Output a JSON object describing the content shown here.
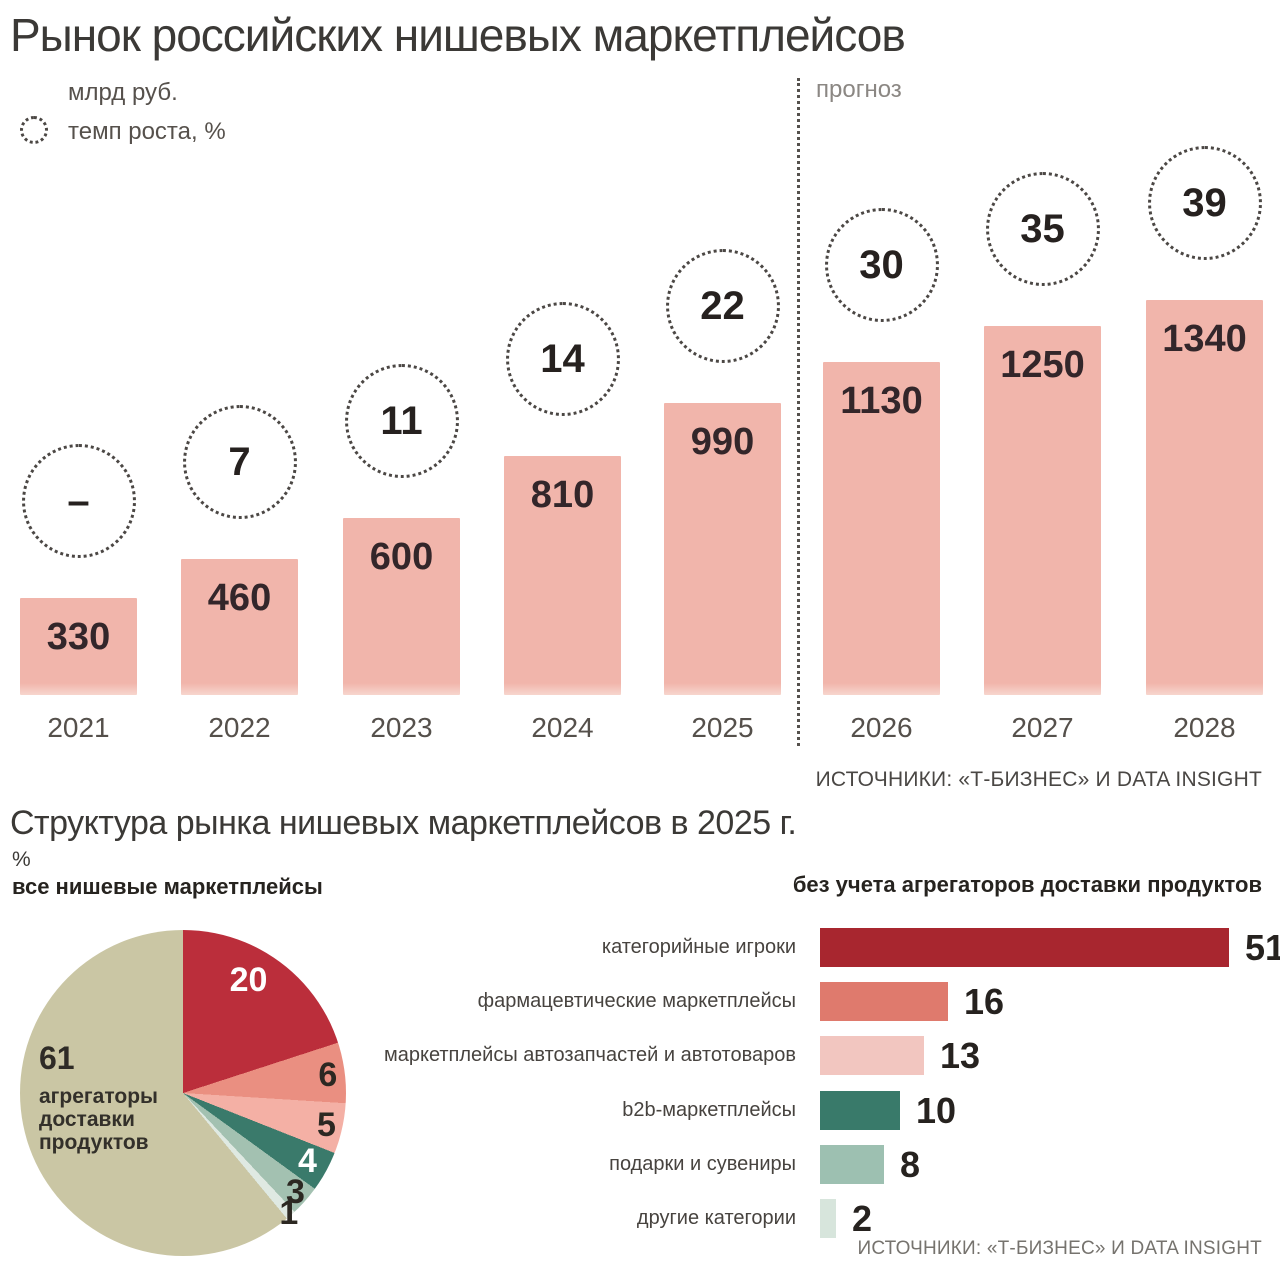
{
  "header": {
    "title": "Рынок российских нишевых маркетплейсов"
  },
  "legend": {
    "bars_label": "млрд руб.",
    "growth_label": "темп роста, %"
  },
  "forecast_label": "прогноз",
  "sources": {
    "top": "ИСТОЧНИКИ: «Т-БИЗНЕС» И DATA INSIGHT",
    "bottom": "ИСТОЧНИКИ: «Т-БИЗНЕС» И DATA INSIGHT"
  },
  "section2": {
    "title": "Структура рынка нишевых маркетплейсов в 2025 г.",
    "unit_label": "%",
    "pie_title": "все нишевые маркетплейсы",
    "hbar_title": "без учета агрегаторов доставки продуктов",
    "aggregator_label": {
      "value": "61",
      "text": "агрегаторы доставки продуктов"
    }
  },
  "colors": {
    "bar_pink": "#f1b5ab",
    "bar_pink_fade": "#f7d6ce",
    "dotted_line": "#55514d"
  },
  "chart_data": [
    {
      "type": "bar",
      "title": "Рынок российских нишевых маркетплейсов",
      "unit": "млрд руб.",
      "categories": [
        "2021",
        "2022",
        "2023",
        "2024",
        "2025",
        "2026",
        "2027",
        "2028"
      ],
      "values": [
        330,
        460,
        600,
        810,
        990,
        1130,
        1250,
        1340
      ],
      "growth_rate_pct": [
        "–",
        "7",
        "11",
        "14",
        "22",
        "30",
        "35",
        "39"
      ],
      "forecast_years": [
        "2026",
        "2027",
        "2028"
      ],
      "bar_color": "#f1b5ab",
      "ylim": [
        0,
        1400
      ],
      "grid": false,
      "legend_position": "top-left"
    },
    {
      "type": "pie",
      "title": "все нишевые маркетплейсы",
      "unit": "%",
      "slices": [
        {
          "value": 20,
          "color": "#bb2e3b",
          "label_color": "#ffffff"
        },
        {
          "value": 6,
          "color": "#ea8f81",
          "label_color": "#2c2822"
        },
        {
          "value": 5,
          "color": "#f4b0a5",
          "label_color": "#2c2822"
        },
        {
          "value": 4,
          "color": "#3a7a6b",
          "label_color": "#ffffff"
        },
        {
          "value": 3,
          "color": "#a3c1b1",
          "label_color": "#2c2822"
        },
        {
          "value": 1,
          "color": "#dfe9e2",
          "label_color": "#2c2822"
        },
        {
          "value": 61,
          "color": "#cac6a4",
          "label": "агрегаторы доставки продуктов",
          "label_color": "#2e2b26"
        }
      ]
    },
    {
      "type": "bar",
      "orientation": "horizontal",
      "title": "без учета агрегаторов доставки продуктов",
      "unit": "%",
      "categories": [
        "категорийные игроки",
        "фармацевтические маркетплейсы",
        "маркетплейсы автозапчастей и автотоваров",
        "b2b-маркетплейсы",
        "подарки и сувениры",
        "другие категории"
      ],
      "values": [
        51,
        16,
        13,
        10,
        8,
        2
      ],
      "colors": [
        "#a8262f",
        "#df7a6d",
        "#f2c6c0",
        "#397a6a",
        "#9dc0b1",
        "#d7e5dc"
      ],
      "xlim": [
        0,
        55
      ],
      "grid": false
    }
  ]
}
